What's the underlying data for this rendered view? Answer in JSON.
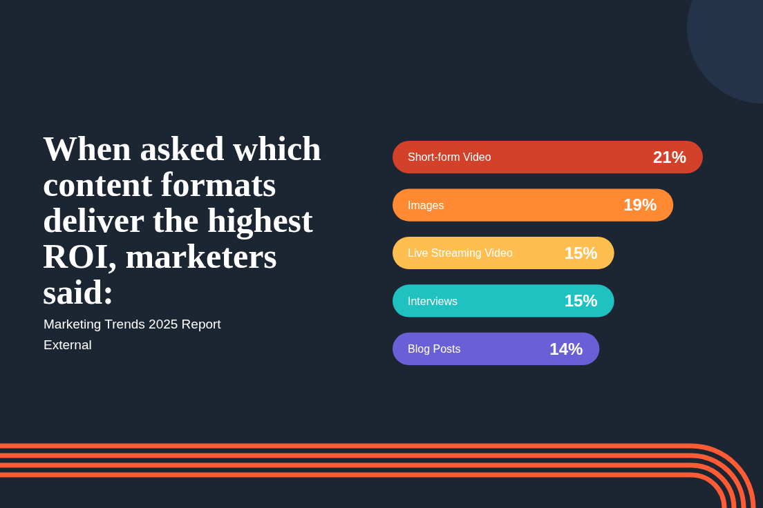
{
  "chart_data": {
    "type": "bar",
    "orientation": "horizontal",
    "title": "When asked which content formats deliver the highest ROI, marketers said:",
    "annotations": [
      "Marketing Trends 2025 Report",
      "External"
    ],
    "categories": [
      "Short-form Video",
      "Images",
      "Live Streaming Video",
      "Interviews",
      "Blog Posts"
    ],
    "values": [
      21,
      19,
      15,
      15,
      14
    ],
    "colors": [
      "#d3412b",
      "#ff8a33",
      "#ffbe4f",
      "#1fc2c1",
      "#6a5fd6"
    ],
    "value_labels": [
      "21%",
      "19%",
      "15%",
      "15%",
      "14%"
    ]
  }
}
